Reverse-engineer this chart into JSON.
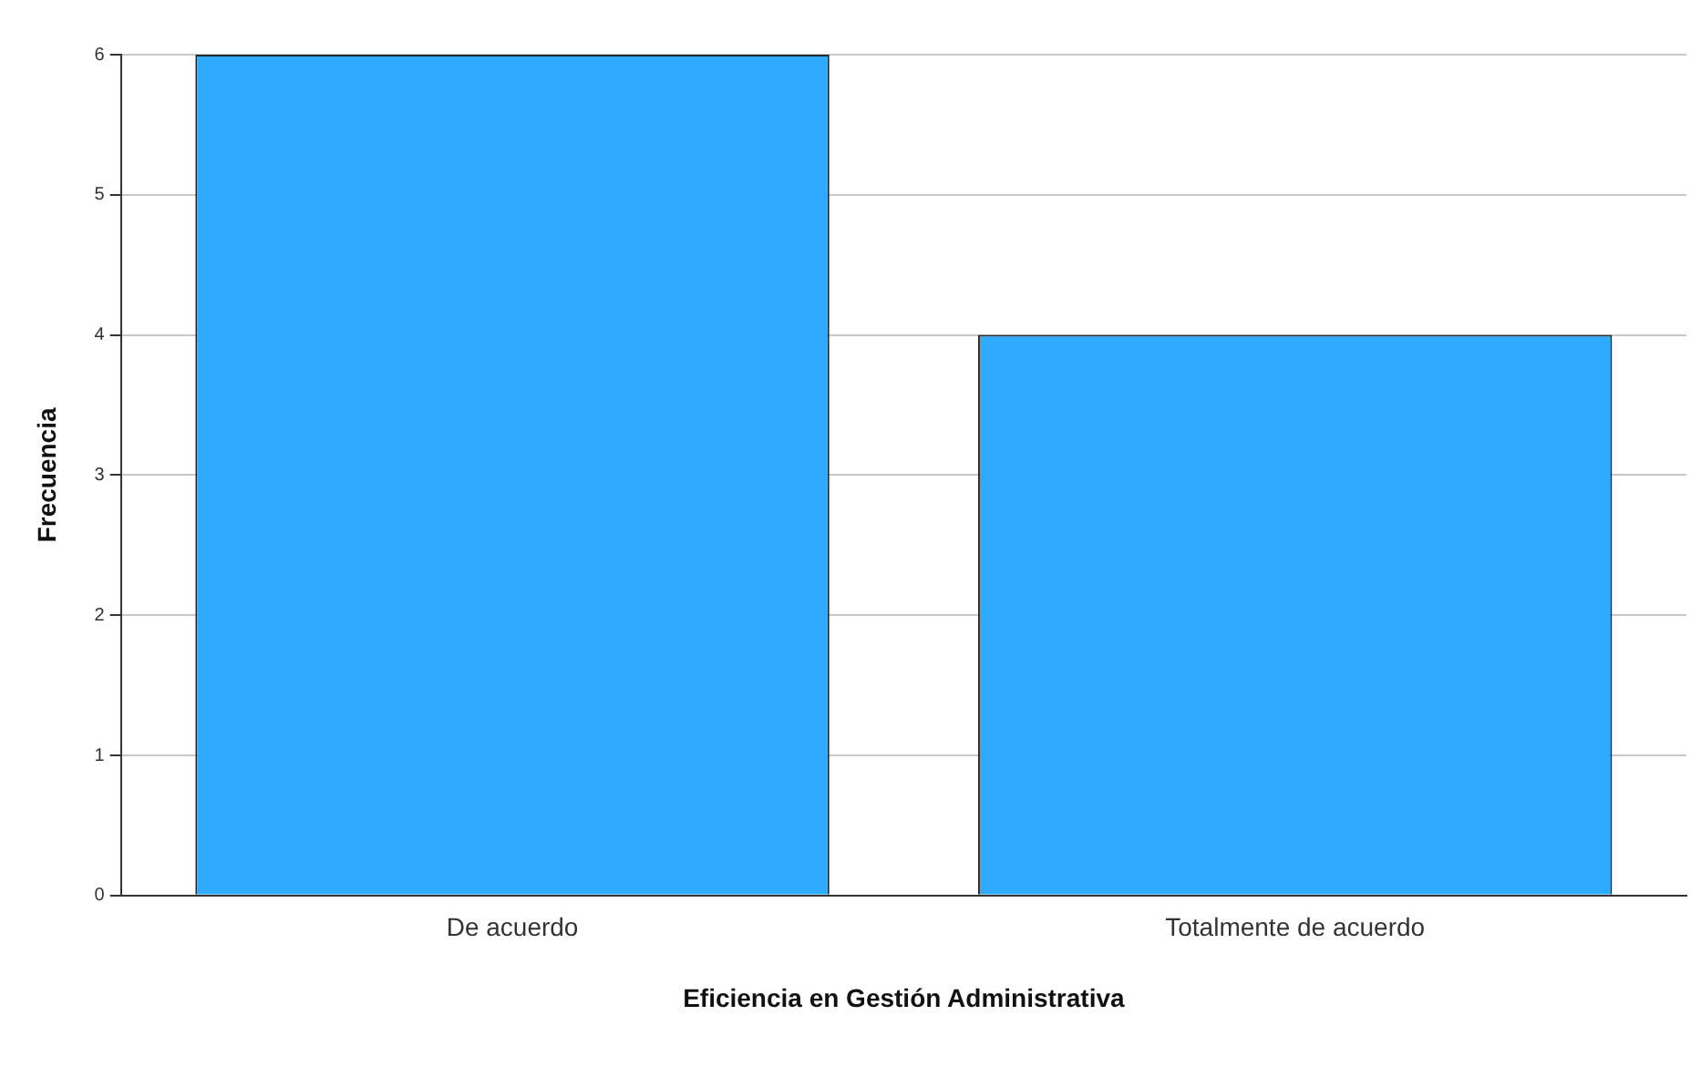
{
  "chart_data": {
    "type": "bar",
    "xlabel": "Eficiencia en Gestión Administrativa",
    "ylabel": "Frecuencia",
    "categories": [
      "De acuerdo",
      "Totalmente de acuerdo"
    ],
    "values": [
      6,
      4
    ],
    "color": "#2eaaff",
    "ylim": [
      0,
      6
    ],
    "yticks": [
      0,
      1,
      2,
      3,
      4,
      5,
      6
    ],
    "grid": "y",
    "legend": false
  }
}
